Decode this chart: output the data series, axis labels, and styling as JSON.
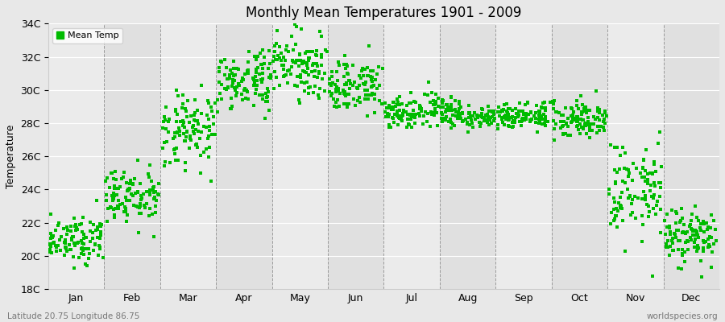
{
  "title": "Monthly Mean Temperatures 1901 - 2009",
  "ylabel": "Temperature",
  "subtitle_left": "Latitude 20.75 Longitude 86.75",
  "subtitle_right": "worldspecies.org",
  "legend_label": "Mean Temp",
  "dot_color": "#00bb00",
  "bg_color": "#e8e8e8",
  "plot_bg_color_light": "#ebebeb",
  "plot_bg_color_dark": "#e0e0e0",
  "ylim": [
    18,
    34
  ],
  "yticks": [
    18,
    20,
    22,
    24,
    26,
    28,
    30,
    32,
    34
  ],
  "ytick_labels": [
    "18C",
    "20C",
    "22C",
    "24C",
    "26C",
    "28C",
    "30C",
    "32C",
    "34C"
  ],
  "months": [
    "Jan",
    "Feb",
    "Mar",
    "Apr",
    "May",
    "Jun",
    "Jul",
    "Aug",
    "Sep",
    "Oct",
    "Nov",
    "Dec"
  ],
  "mean_temps": [
    21.0,
    23.5,
    27.5,
    30.5,
    31.5,
    30.2,
    28.7,
    28.5,
    28.5,
    28.3,
    24.0,
    21.2
  ],
  "temp_std": [
    0.7,
    0.9,
    1.1,
    0.9,
    0.9,
    0.8,
    0.5,
    0.4,
    0.4,
    0.6,
    1.5,
    0.9
  ],
  "n_years": 109,
  "figsize": [
    9.0,
    4.0
  ],
  "dpi": 100,
  "marker_size": 5
}
